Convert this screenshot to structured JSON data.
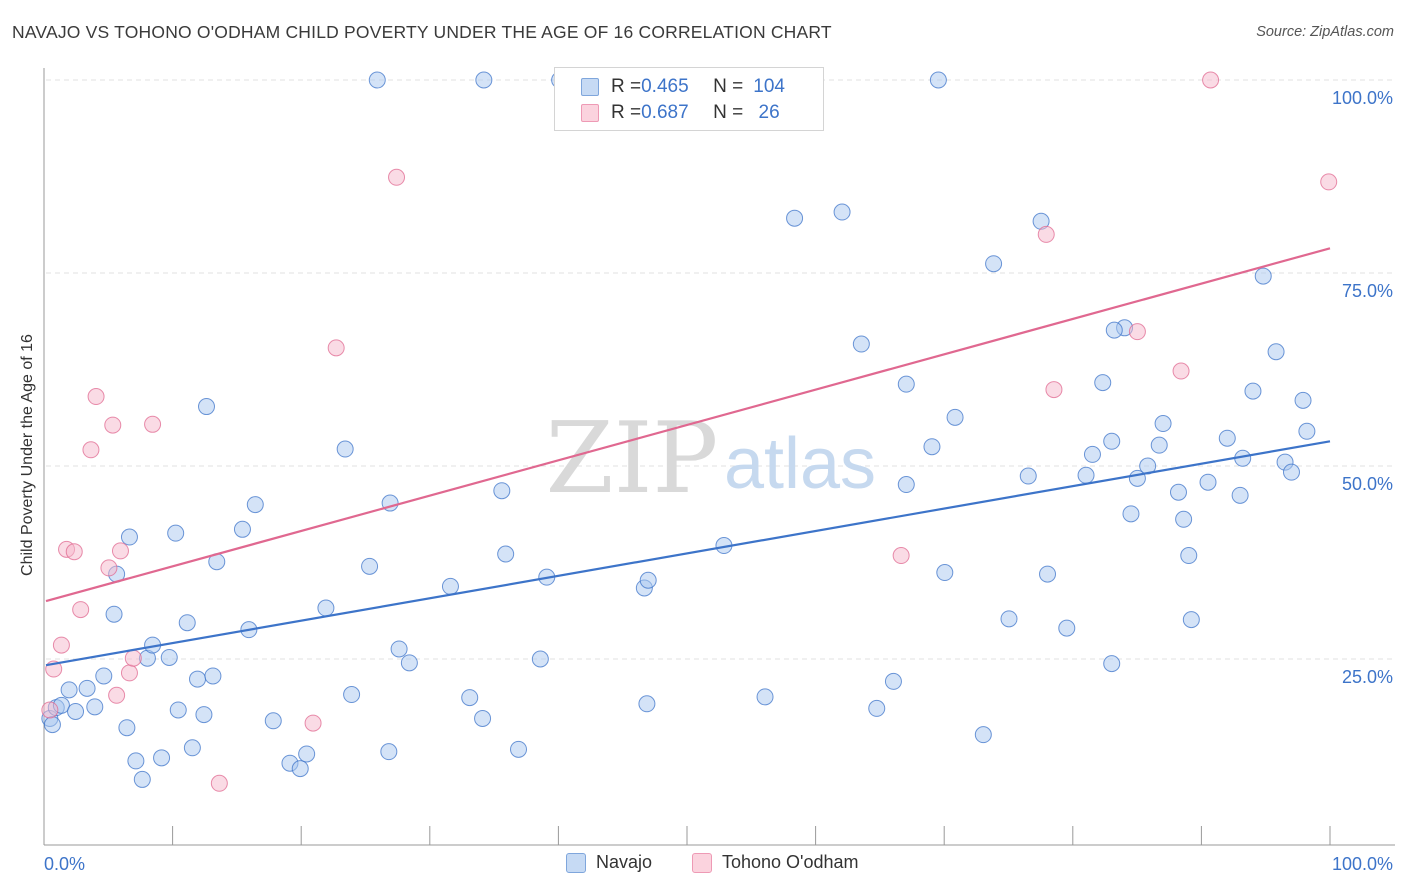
{
  "header": {
    "title": "NAVAJO VS TOHONO O'ODHAM CHILD POVERTY UNDER THE AGE OF 16 CORRELATION CHART",
    "source": "Source: ZipAtlas.com"
  },
  "watermark": {
    "zip": "ZIP",
    "atlas": "atlas"
  },
  "legend": {
    "rows": [
      {
        "r_label": "R = ",
        "r_value": "0.465",
        "n_label": "N = ",
        "n_value": "104",
        "color": "#a9c8ef"
      },
      {
        "r_label": "R = ",
        "r_value": "0.687",
        "n_label": "N = ",
        "n_value": "26",
        "color": "#f5b8cb"
      }
    ]
  },
  "chart_data": {
    "type": "scatter",
    "title": "NAVAJO VS TOHONO O'ODHAM CHILD POVERTY UNDER THE AGE OF 16 CORRELATION CHART",
    "xlabel": "",
    "ylabel": "Child Poverty Under the Age of 16",
    "xlim": [
      0,
      100
    ],
    "ylim": [
      0,
      100
    ],
    "x_tick_labels": [
      "0.0%",
      "100.0%"
    ],
    "y_tick_labels": [
      "25.0%",
      "50.0%",
      "75.0%",
      "100.0%"
    ],
    "y_tick_values": [
      25,
      50,
      75,
      100
    ],
    "grid": "horizontal dashed",
    "legend_position": "bottom-center",
    "series": [
      {
        "name": "Navajo",
        "color": "#3d74c9",
        "fill": "#a9c8ef",
        "R": 0.465,
        "N": 104,
        "trend": {
          "x": [
            0,
            100
          ],
          "y": [
            24.2,
            53.2
          ]
        },
        "points": [
          [
            0.3,
            17.3
          ],
          [
            0.5,
            16.5
          ],
          [
            0.8,
            18.7
          ],
          [
            1.2,
            19.0
          ],
          [
            1.8,
            21.0
          ],
          [
            2.3,
            18.2
          ],
          [
            3.2,
            21.2
          ],
          [
            3.8,
            18.8
          ],
          [
            4.5,
            22.8
          ],
          [
            5.5,
            36.0
          ],
          [
            5.3,
            30.8
          ],
          [
            6.3,
            16.1
          ],
          [
            6.5,
            40.8
          ],
          [
            7.0,
            11.8
          ],
          [
            7.5,
            9.4
          ],
          [
            7.9,
            25.1
          ],
          [
            8.3,
            26.8
          ],
          [
            9.0,
            12.2
          ],
          [
            9.6,
            25.2
          ],
          [
            10.1,
            41.3
          ],
          [
            10.3,
            18.4
          ],
          [
            11.0,
            29.7
          ],
          [
            11.4,
            13.5
          ],
          [
            11.8,
            22.4
          ],
          [
            12.3,
            17.8
          ],
          [
            12.5,
            57.7
          ],
          [
            13.0,
            22.8
          ],
          [
            13.3,
            37.6
          ],
          [
            15.8,
            28.8
          ],
          [
            15.3,
            41.8
          ],
          [
            16.3,
            45.0
          ],
          [
            17.7,
            17.0
          ],
          [
            19.0,
            11.5
          ],
          [
            19.8,
            10.8
          ],
          [
            20.3,
            12.7
          ],
          [
            21.8,
            31.6
          ],
          [
            23.3,
            52.2
          ],
          [
            25.2,
            37.0
          ],
          [
            23.8,
            20.4
          ],
          [
            26.8,
            45.2
          ],
          [
            26.7,
            13.0
          ],
          [
            27.5,
            26.3
          ],
          [
            28.3,
            24.5
          ],
          [
            31.5,
            34.4
          ],
          [
            33.0,
            20.0
          ],
          [
            34.0,
            17.3
          ],
          [
            35.5,
            46.8
          ],
          [
            35.8,
            38.6
          ],
          [
            36.8,
            13.3
          ],
          [
            38.5,
            25.0
          ],
          [
            39.0,
            35.6
          ],
          [
            46.8,
            19.2
          ],
          [
            46.6,
            34.2
          ],
          [
            46.9,
            35.2
          ],
          [
            52.8,
            39.7
          ],
          [
            56.0,
            20.1
          ],
          [
            58.3,
            82.1
          ],
          [
            62.0,
            82.9
          ],
          [
            63.5,
            65.8
          ],
          [
            64.7,
            18.6
          ],
          [
            66.0,
            22.1
          ],
          [
            67.0,
            60.6
          ],
          [
            67.0,
            47.6
          ],
          [
            69.0,
            52.5
          ],
          [
            70.0,
            36.2
          ],
          [
            70.8,
            56.3
          ],
          [
            73.0,
            15.2
          ],
          [
            73.8,
            76.2
          ],
          [
            75.0,
            30.2
          ],
          [
            76.5,
            48.7
          ],
          [
            77.5,
            81.7
          ],
          [
            78.0,
            36.0
          ],
          [
            79.5,
            29.0
          ],
          [
            81.0,
            48.8
          ],
          [
            81.5,
            51.5
          ],
          [
            82.3,
            60.8
          ],
          [
            83.0,
            24.4
          ],
          [
            84.0,
            67.9
          ],
          [
            83.2,
            67.6
          ],
          [
            83.0,
            53.2
          ],
          [
            84.5,
            43.8
          ],
          [
            85.0,
            48.4
          ],
          [
            85.8,
            50.0
          ],
          [
            86.7,
            52.7
          ],
          [
            87.0,
            55.5
          ],
          [
            88.2,
            46.6
          ],
          [
            88.6,
            43.1
          ],
          [
            89.0,
            38.4
          ],
          [
            89.2,
            30.1
          ],
          [
            90.5,
            47.9
          ],
          [
            92.0,
            53.6
          ],
          [
            93.0,
            46.2
          ],
          [
            93.2,
            51.0
          ],
          [
            94.0,
            59.7
          ],
          [
            94.8,
            74.6
          ],
          [
            95.8,
            64.8
          ],
          [
            96.5,
            50.5
          ],
          [
            97.0,
            49.2
          ],
          [
            97.9,
            58.5
          ],
          [
            98.2,
            54.5
          ],
          [
            25.8,
            100
          ],
          [
            34.1,
            100
          ],
          [
            69.5,
            100
          ],
          [
            40.0,
            100
          ]
        ]
      },
      {
        "name": "Tohono O'odham",
        "color": "#e06890",
        "fill": "#f5b8cb",
        "R": 0.687,
        "N": 26,
        "trend": {
          "x": [
            0,
            100
          ],
          "y": [
            32.5,
            78.2
          ]
        },
        "points": [
          [
            0.3,
            18.4
          ],
          [
            0.6,
            23.7
          ],
          [
            1.2,
            26.8
          ],
          [
            1.6,
            39.2
          ],
          [
            2.2,
            38.9
          ],
          [
            2.7,
            31.4
          ],
          [
            3.5,
            52.1
          ],
          [
            3.9,
            59.0
          ],
          [
            4.9,
            36.8
          ],
          [
            5.5,
            20.3
          ],
          [
            5.2,
            55.3
          ],
          [
            5.8,
            39.0
          ],
          [
            6.5,
            23.2
          ],
          [
            6.8,
            25.1
          ],
          [
            8.3,
            55.4
          ],
          [
            13.5,
            8.9
          ],
          [
            20.8,
            16.7
          ],
          [
            22.6,
            65.3
          ],
          [
            27.3,
            87.4
          ],
          [
            66.6,
            38.4
          ],
          [
            77.9,
            80.0
          ],
          [
            78.5,
            59.9
          ],
          [
            85.0,
            67.4
          ],
          [
            88.4,
            62.3
          ],
          [
            90.7,
            100
          ],
          [
            99.9,
            86.8
          ]
        ]
      }
    ]
  }
}
